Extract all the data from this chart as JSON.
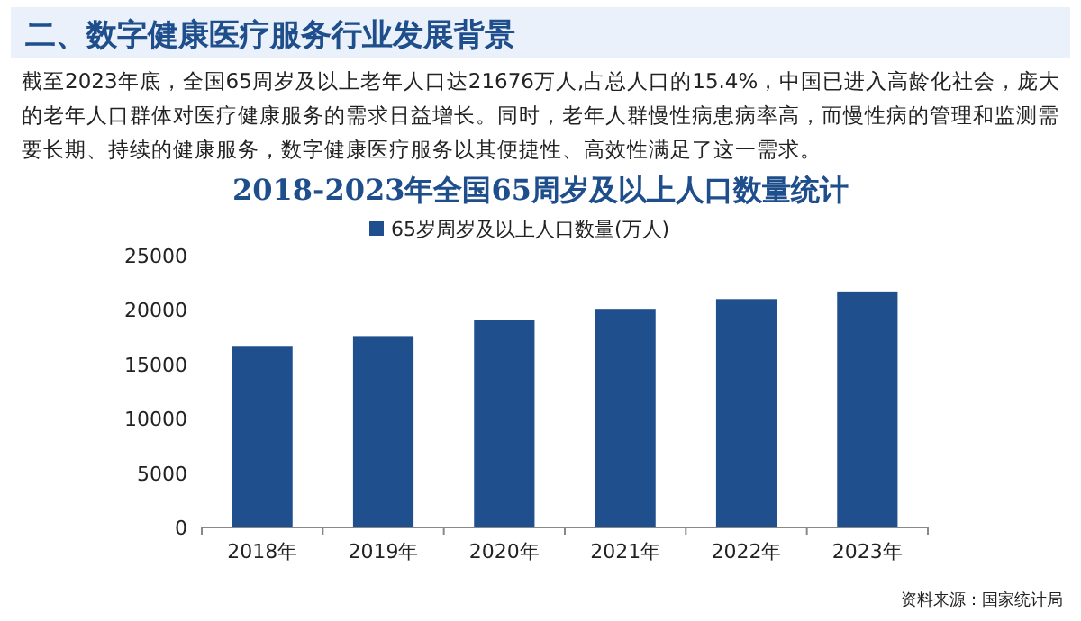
{
  "chart_data": {
    "type": "bar",
    "title": "2018-2023年全国65周岁及以上人口数量统计",
    "annotations": [
      "二、数字健康医疗服务行业发展背景",
      "截至2023年底，全国65周岁及以上老年人口达21676万人,占总人口的15.4%，中国已进入高龄化社会，庞大的老年人口群体对医疗健康服务的需求日益增长。同时，老年人群慢性病患病率高，而慢性病的管理和监测需要长期、持续的健康服务，数字健康医疗服务以其便捷性、高效性满足了这一需求。",
      "资料来源：国家统计局"
    ],
    "categories": [
      "2018年",
      "2019年",
      "2020年",
      "2021年",
      "2022年",
      "2023年"
    ],
    "series": [
      {
        "name": "65岁周岁及以上人口数量(万人)",
        "color": "#204f8e",
        "values": [
          16700,
          17600,
          19100,
          20100,
          21000,
          21700
        ]
      }
    ],
    "ylim": [
      0,
      25000
    ],
    "yticks": [
      0,
      5000,
      10000,
      15000,
      20000,
      25000
    ],
    "grid": false,
    "legend": "top"
  }
}
